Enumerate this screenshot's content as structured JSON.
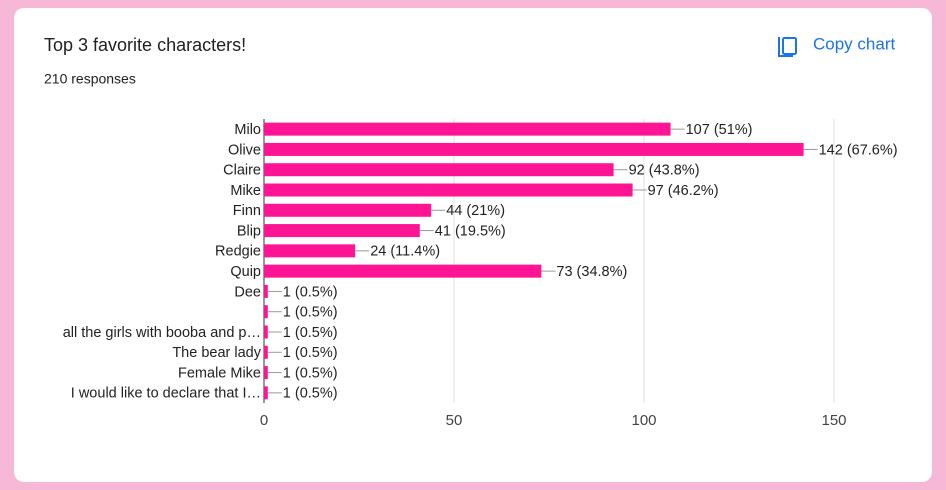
{
  "chart_data": {
    "type": "bar",
    "orientation": "horizontal",
    "title": "Top 3 favorite characters!",
    "subtitle": "210 responses",
    "action": "Copy chart",
    "categories": [
      "Milo",
      "Olive",
      "Claire",
      "Mike",
      "Finn",
      "Blip",
      "Redgie",
      "Quip",
      "Dee",
      null,
      "all the girls with booba and p…",
      "The bear lady",
      "Female Mike",
      "I would like to declare that I…"
    ],
    "values": [
      107,
      142,
      92,
      97,
      44,
      41,
      24,
      73,
      1,
      1,
      1,
      1,
      1,
      1
    ],
    "value_labels": [
      "107 (51%)",
      "142 (67.6%)",
      "92 (43.8%)",
      "97 (46.2%)",
      "44 (21%)",
      "41 (19.5%)",
      "24 (11.4%)",
      "73 (34.8%)",
      "1 (0.5%)",
      "1 (0.5%)",
      "1 (0.5%)",
      "1 (0.5%)",
      "1 (0.5%)",
      "1 (0.5%)"
    ],
    "color": "#ff1493",
    "xlim": [
      0,
      150
    ],
    "xticks": [
      0,
      50,
      100,
      150
    ],
    "grid": true
  }
}
